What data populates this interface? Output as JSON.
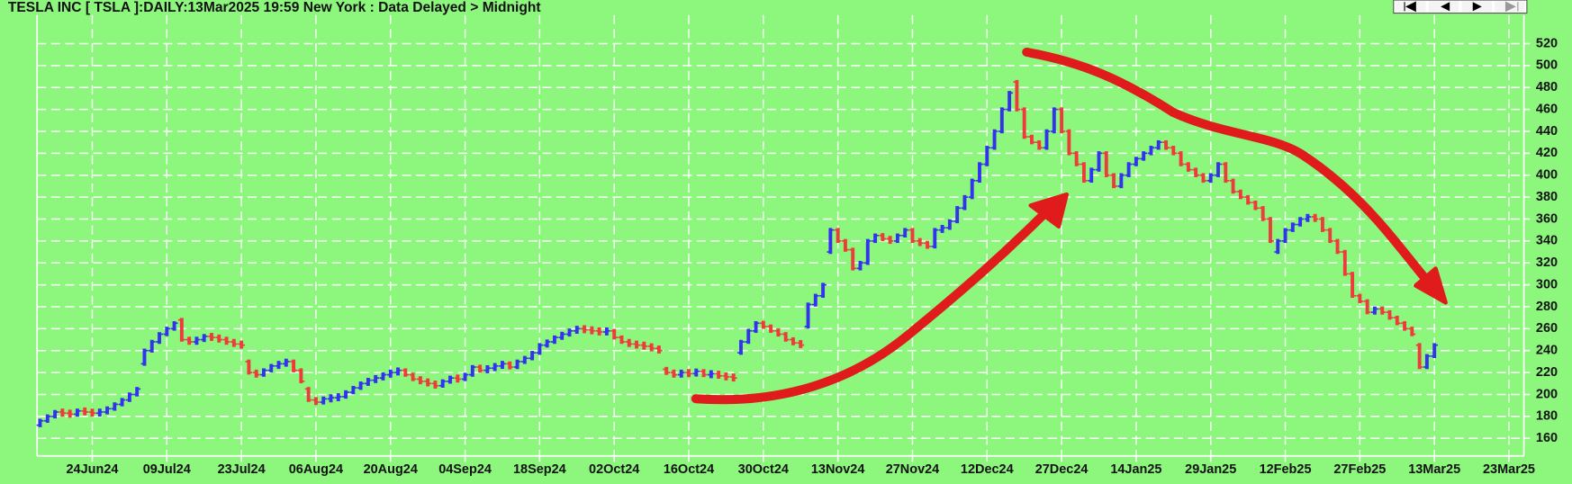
{
  "chart_data": {
    "type": "ohlc",
    "title": "TESLA INC [ TSLA ]:DAILY:13Mar2025 19:59 New York : Data Delayed > Midnight",
    "up_color": "#3333ee",
    "down_color": "#ee3b3b",
    "background": "#8cf77c",
    "grid": true,
    "xlim": [
      -0.4,
      199
    ],
    "ylim": [
      144,
      546
    ],
    "yticks": [
      160,
      180,
      200,
      220,
      240,
      260,
      280,
      300,
      320,
      340,
      360,
      380,
      400,
      420,
      440,
      460,
      480,
      500,
      520
    ],
    "xticks": [
      {
        "value": 7,
        "label": "24Jun24"
      },
      {
        "value": 17,
        "label": "09Jul24"
      },
      {
        "value": 27,
        "label": "23Jul24"
      },
      {
        "value": 37,
        "label": "06Aug24"
      },
      {
        "value": 47,
        "label": "20Aug24"
      },
      {
        "value": 57,
        "label": "04Sep24"
      },
      {
        "value": 67,
        "label": "18Sep24"
      },
      {
        "value": 77,
        "label": "02Oct24"
      },
      {
        "value": 87,
        "label": "16Oct24"
      },
      {
        "value": 97,
        "label": "30Oct24"
      },
      {
        "value": 107,
        "label": "13Nov24"
      },
      {
        "value": 117,
        "label": "27Nov24"
      },
      {
        "value": 127,
        "label": "12Dec24"
      },
      {
        "value": 137,
        "label": "27Dec24"
      },
      {
        "value": 147,
        "label": "14Jan25"
      },
      {
        "value": 157,
        "label": "29Jan25"
      },
      {
        "value": 167,
        "label": "12Feb25"
      },
      {
        "value": 177,
        "label": "27Feb25"
      },
      {
        "value": 187,
        "label": "13Mar25"
      },
      {
        "value": 197,
        "label": "23Mar25"
      }
    ],
    "x": [
      0,
      1,
      2,
      3,
      4,
      5,
      6,
      7,
      8,
      9,
      10,
      11,
      12,
      13,
      14,
      15,
      16,
      17,
      18,
      19,
      20,
      21,
      22,
      23,
      24,
      25,
      26,
      27,
      28,
      29,
      30,
      31,
      32,
      33,
      34,
      35,
      36,
      37,
      38,
      39,
      40,
      41,
      42,
      43,
      44,
      45,
      46,
      47,
      48,
      49,
      50,
      51,
      52,
      53,
      54,
      55,
      56,
      57,
      58,
      59,
      60,
      61,
      62,
      63,
      64,
      65,
      66,
      67,
      68,
      69,
      70,
      71,
      72,
      73,
      74,
      75,
      76,
      77,
      78,
      79,
      80,
      81,
      82,
      83,
      84,
      85,
      86,
      87,
      88,
      89,
      90,
      91,
      92,
      93,
      94,
      95,
      96,
      97,
      98,
      99,
      100,
      101,
      102,
      103,
      104,
      105,
      106,
      107,
      108,
      109,
      110,
      111,
      112,
      113,
      114,
      115,
      116,
      117,
      118,
      119,
      120,
      121,
      122,
      123,
      124,
      125,
      126,
      127,
      128,
      129,
      130,
      131,
      132,
      133,
      134,
      135,
      136,
      137,
      138,
      139,
      140,
      141,
      142,
      143,
      144,
      145,
      146,
      147,
      148,
      149,
      150,
      151,
      152,
      153,
      154,
      155,
      156,
      157,
      158,
      159,
      160,
      161,
      162,
      163,
      164,
      165,
      166,
      167,
      168,
      169,
      170,
      171,
      172,
      173,
      174,
      175,
      176,
      177,
      178,
      179,
      180,
      181,
      182,
      183,
      184,
      185,
      186,
      187
    ],
    "open": [
      172,
      176,
      180,
      184,
      183,
      182,
      185,
      184,
      183,
      184,
      187,
      191,
      195,
      200,
      228,
      240,
      248,
      255,
      260,
      268,
      250,
      248,
      250,
      253,
      252,
      250,
      248,
      246,
      230,
      220,
      218,
      222,
      226,
      228,
      230,
      222,
      205,
      195,
      193,
      196,
      197,
      198,
      202,
      206,
      210,
      213,
      215,
      218,
      220,
      222,
      218,
      214,
      212,
      210,
      208,
      212,
      215,
      214,
      218,
      225,
      222,
      224,
      226,
      228,
      225,
      230,
      233,
      238,
      245,
      248,
      252,
      255,
      258,
      260,
      259,
      258,
      257,
      258,
      252,
      248,
      246,
      245,
      244,
      242,
      223,
      220,
      218,
      220,
      219,
      221,
      218,
      219,
      217,
      216,
      238,
      248,
      258,
      265,
      262,
      258,
      255,
      250,
      247,
      262,
      282,
      290,
      330,
      350,
      340,
      332,
      315,
      320,
      340,
      345,
      342,
      340,
      345,
      350,
      340,
      338,
      335,
      350,
      352,
      358,
      370,
      380,
      395,
      410,
      425,
      440,
      460,
      485,
      460,
      435,
      430,
      425,
      440,
      460,
      440,
      420,
      410,
      395,
      405,
      420,
      400,
      390,
      400,
      410,
      415,
      420,
      425,
      430,
      425,
      420,
      410,
      405,
      400,
      395,
      400,
      410,
      395,
      385,
      380,
      375,
      370,
      360,
      330,
      340,
      350,
      355,
      360,
      362,
      360,
      350,
      340,
      330,
      310,
      290,
      285,
      275,
      278,
      275,
      270,
      265,
      260,
      245,
      225,
      235
    ],
    "close": [
      176,
      180,
      184,
      183,
      182,
      185,
      184,
      183,
      184,
      187,
      191,
      195,
      200,
      205,
      240,
      248,
      255,
      260,
      265,
      250,
      248,
      250,
      253,
      252,
      250,
      248,
      246,
      245,
      220,
      218,
      222,
      226,
      228,
      230,
      222,
      212,
      195,
      193,
      196,
      197,
      198,
      202,
      206,
      210,
      213,
      215,
      218,
      220,
      222,
      218,
      214,
      212,
      210,
      208,
      212,
      215,
      214,
      218,
      225,
      222,
      224,
      226,
      228,
      225,
      230,
      233,
      238,
      245,
      248,
      252,
      255,
      258,
      260,
      259,
      258,
      257,
      258,
      252,
      248,
      246,
      245,
      244,
      242,
      240,
      220,
      218,
      220,
      219,
      221,
      218,
      219,
      217,
      216,
      215,
      248,
      258,
      265,
      262,
      258,
      255,
      250,
      247,
      245,
      282,
      290,
      300,
      350,
      340,
      332,
      315,
      320,
      340,
      345,
      342,
      340,
      345,
      350,
      340,
      338,
      335,
      350,
      352,
      358,
      370,
      380,
      395,
      410,
      425,
      440,
      460,
      475,
      460,
      435,
      430,
      425,
      440,
      460,
      440,
      420,
      410,
      395,
      405,
      420,
      400,
      390,
      400,
      410,
      415,
      420,
      425,
      430,
      425,
      420,
      410,
      405,
      400,
      395,
      400,
      410,
      395,
      385,
      380,
      375,
      370,
      360,
      340,
      340,
      350,
      355,
      360,
      362,
      360,
      350,
      340,
      330,
      310,
      290,
      285,
      275,
      278,
      275,
      270,
      265,
      260,
      255,
      225,
      235,
      245
    ]
  }
}
